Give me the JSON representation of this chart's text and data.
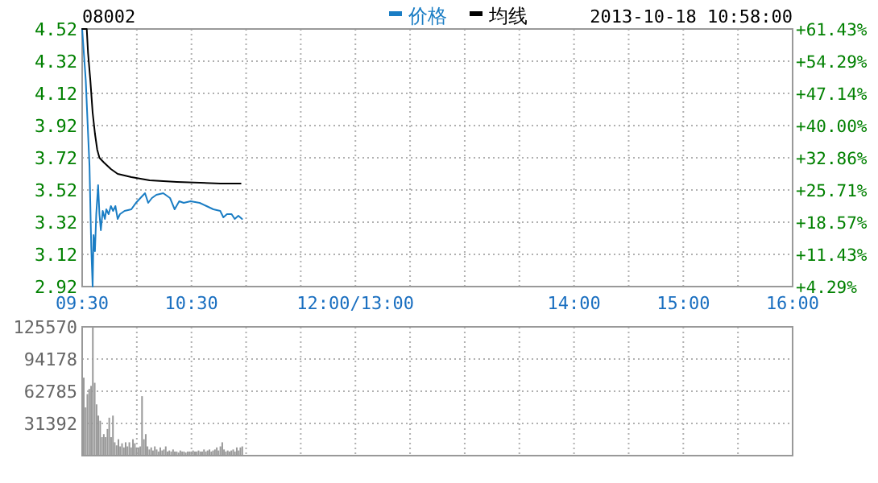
{
  "chart_data": [
    {
      "type": "line",
      "title": "08002",
      "annotations": [
        "2013-10-18 10:58:00"
      ],
      "legend": "top",
      "grid": true,
      "xlim": [
        9.5,
        16
      ],
      "xticks": [
        {
          "value": 9.5,
          "label": "09:30"
        },
        {
          "value": 10,
          "label": null
        },
        {
          "value": 10.5,
          "label": "10:30"
        },
        {
          "value": 11,
          "label": null
        },
        {
          "value": 11.5,
          "label": null
        },
        {
          "value": 12,
          "label": "12:00/13:00"
        },
        {
          "value": 12.5,
          "label": null
        },
        {
          "value": 13,
          "label": null
        },
        {
          "value": 13.5,
          "label": null
        },
        {
          "value": 14,
          "label": "14:00"
        },
        {
          "value": 14.5,
          "label": null
        },
        {
          "value": 15,
          "label": "15:00"
        },
        {
          "value": 15.5,
          "label": null
        },
        {
          "value": 16,
          "label": "16:00"
        }
      ],
      "ylim": [
        2.92,
        4.52
      ],
      "yticks": [
        2.92,
        3.12,
        3.32,
        3.52,
        3.72,
        3.92,
        4.12,
        4.32,
        4.52
      ],
      "y2lim": [
        4.29,
        61.43
      ],
      "y2ticks": [
        {
          "value": 4.29,
          "label": "+4.29%"
        },
        {
          "value": 11.43,
          "label": "+11.43%"
        },
        {
          "value": 18.57,
          "label": "+18.57%"
        },
        {
          "value": 25.71,
          "label": "+25.71%"
        },
        {
          "value": 32.86,
          "label": "+32.86%"
        },
        {
          "value": 40.0,
          "label": "+40.00%"
        },
        {
          "value": 47.14,
          "label": "+47.14%"
        },
        {
          "value": 54.29,
          "label": "+54.29%"
        },
        {
          "value": 61.43,
          "label": "+61.43%"
        }
      ],
      "series": [
        {
          "name": "价格",
          "color": "#1a7dc4",
          "x": [
            9.5,
            9.533,
            9.554,
            9.567,
            9.583,
            9.596,
            9.604,
            9.617,
            9.629,
            9.646,
            9.658,
            9.671,
            9.688,
            9.708,
            9.721,
            9.742,
            9.763,
            9.783,
            9.804,
            9.825,
            9.846,
            9.888,
            9.95,
            9.992,
            10.033,
            10.075,
            10.104,
            10.138,
            10.179,
            10.242,
            10.304,
            10.346,
            10.388,
            10.429,
            10.492,
            10.575,
            10.638,
            10.7,
            10.763,
            10.792,
            10.825,
            10.867,
            10.896,
            10.929,
            10.963
          ],
          "values": [
            4.52,
            4.2,
            3.87,
            3.67,
            3.17,
            2.92,
            3.24,
            3.14,
            3.37,
            3.55,
            3.37,
            3.27,
            3.39,
            3.34,
            3.4,
            3.37,
            3.42,
            3.39,
            3.42,
            3.34,
            3.37,
            3.39,
            3.4,
            3.44,
            3.47,
            3.5,
            3.44,
            3.47,
            3.49,
            3.5,
            3.47,
            3.4,
            3.45,
            3.44,
            3.45,
            3.44,
            3.42,
            3.4,
            3.39,
            3.35,
            3.37,
            3.37,
            3.34,
            3.36,
            3.34
          ]
        },
        {
          "name": "均线",
          "color": "#000000",
          "x": [
            9.5,
            9.542,
            9.554,
            9.575,
            9.596,
            9.617,
            9.638,
            9.658,
            9.7,
            9.763,
            9.825,
            9.95,
            10.117,
            10.367,
            10.763,
            10.95
          ],
          "values": [
            4.52,
            4.52,
            4.37,
            4.2,
            4.0,
            3.87,
            3.77,
            3.72,
            3.69,
            3.65,
            3.62,
            3.6,
            3.58,
            3.57,
            3.56,
            3.56
          ]
        }
      ]
    },
    {
      "type": "bar",
      "color": "#999999",
      "grid": true,
      "tick_labels": "y",
      "xlim": [
        9.5,
        16
      ],
      "xticks": [
        {
          "value": 9.5,
          "label": null
        },
        {
          "value": 10,
          "label": null
        },
        {
          "value": 10.5,
          "label": null
        },
        {
          "value": 11,
          "label": null
        },
        {
          "value": 11.5,
          "label": null
        },
        {
          "value": 12,
          "label": null
        },
        {
          "value": 12.5,
          "label": null
        },
        {
          "value": 13,
          "label": null
        },
        {
          "value": 13.5,
          "label": null
        },
        {
          "value": 14,
          "label": null
        },
        {
          "value": 14.5,
          "label": null
        },
        {
          "value": 15,
          "label": null
        },
        {
          "value": 15.5,
          "label": null
        },
        {
          "value": 16,
          "label": null
        }
      ],
      "ylim": [
        0,
        125570
      ],
      "yticks": [
        31392,
        62785,
        94178,
        125570
      ],
      "x": [
        9.5,
        9.517,
        9.533,
        9.55,
        9.567,
        9.583,
        9.6,
        9.617,
        9.633,
        9.65,
        9.667,
        9.683,
        9.7,
        9.717,
        9.733,
        9.75,
        9.767,
        9.783,
        9.8,
        9.817,
        9.833,
        9.85,
        9.867,
        9.883,
        9.9,
        9.917,
        9.933,
        9.95,
        9.967,
        9.983,
        10,
        10.017,
        10.033,
        10.05,
        10.067,
        10.083,
        10.1,
        10.117,
        10.133,
        10.15,
        10.167,
        10.183,
        10.2,
        10.217,
        10.233,
        10.25,
        10.267,
        10.283,
        10.3,
        10.317,
        10.333,
        10.35,
        10.367,
        10.383,
        10.4,
        10.417,
        10.433,
        10.45,
        10.467,
        10.483,
        10.5,
        10.517,
        10.533,
        10.55,
        10.567,
        10.583,
        10.6,
        10.617,
        10.633,
        10.65,
        10.667,
        10.683,
        10.7,
        10.717,
        10.733,
        10.75,
        10.767,
        10.783,
        10.8,
        10.817,
        10.833,
        10.85,
        10.867,
        10.883,
        10.9,
        10.917,
        10.933,
        10.95
      ],
      "values": [
        76000,
        47000,
        60000,
        65000,
        68000,
        125000,
        71000,
        50000,
        39000,
        34000,
        18000,
        21000,
        18000,
        26000,
        37000,
        18000,
        39000,
        13000,
        10000,
        16000,
        9000,
        12000,
        8000,
        13000,
        9000,
        13000,
        8000,
        16000,
        12000,
        8000,
        8000,
        9000,
        58000,
        16000,
        21000,
        9000,
        6000,
        8000,
        5000,
        9000,
        6000,
        4000,
        8000,
        5000,
        6000,
        9000,
        4000,
        5000,
        4000,
        6000,
        4000,
        4000,
        3000,
        5000,
        4000,
        4000,
        3000,
        4000,
        4000,
        4000,
        5000,
        4000,
        4000,
        5000,
        4000,
        4000,
        6000,
        4000,
        5000,
        6000,
        4000,
        5000,
        6000,
        8000,
        5000,
        9000,
        13000,
        6000,
        4000,
        5000,
        4000,
        5000,
        6000,
        4000,
        8000,
        5000,
        8000,
        9000
      ]
    }
  ]
}
